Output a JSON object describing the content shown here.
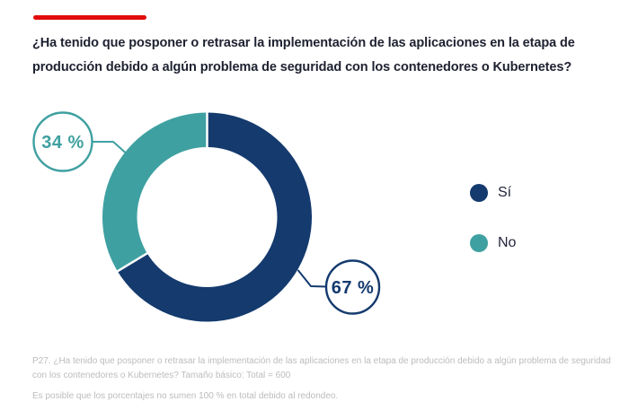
{
  "accent": {
    "bar_color": "#e20c0c"
  },
  "title": "¿Ha tenido que posponer o retrasar la implementación de las aplicaciones en la etapa de producción debido a algún problema de seguridad con los contenedores o Kubernetes?",
  "chart_data": {
    "type": "pie",
    "subtype": "donut",
    "title": "",
    "categories": [
      "Sí",
      "No"
    ],
    "values": [
      67,
      34
    ],
    "unit": "%",
    "colors": [
      "#143a6e",
      "#3fa0a1"
    ],
    "start_angle_deg": 0,
    "direction": "clockwise",
    "legend_position": "right",
    "callouts": [
      {
        "category": "Sí",
        "label": "67 %",
        "color": "#143a6e"
      },
      {
        "category": "No",
        "label": "34 %",
        "color": "#3fa0a1"
      }
    ],
    "legend": [
      {
        "label": "Sí",
        "color": "#143a6e"
      },
      {
        "label": "No",
        "color": "#3fa0a1"
      }
    ]
  },
  "footnotes": {
    "source": "P27. ¿Ha tenido que posponer o retrasar la implementación de las aplicaciones en la etapa de producción debido a algún problema de seguridad con los contenedores o Kubernetes? Tamaño básico: Total = 600",
    "rounding": "Es posible que los porcentajes no sumen 100 % en total debido al redondeo."
  }
}
